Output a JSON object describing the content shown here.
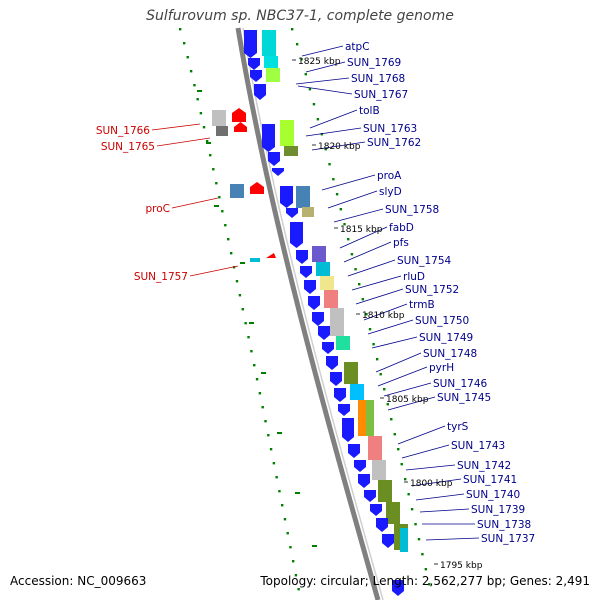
{
  "title": "Sulfurovum sp. NBC37-1, complete genome",
  "footer": {
    "accession": "Accession: NC_009663",
    "topology": "Topology: circular; Length: 2,562,277 bp; Genes: 2,491"
  },
  "colors": {
    "forward_gene": "#1a1aff",
    "reverse_gene": "#ff0000",
    "backbone": "#808080",
    "gc_dots": "#008000",
    "right_label": "#00008b",
    "left_label": "#cc0000"
  },
  "kbp_labels": [
    "1825 kbp",
    "1820 kbp",
    "1815 kbp",
    "1810 kbp",
    "1805 kbp",
    "1800 kbp",
    "1795 kbp"
  ],
  "right_genes": [
    "atpC",
    "SUN_1769",
    "SUN_1768",
    "SUN_1767",
    "tolB",
    "SUN_1763",
    "SUN_1762",
    "proA",
    "slyD",
    "SUN_1758",
    "fabD",
    "pfs",
    "SUN_1754",
    "rluD",
    "SUN_1752",
    "trmB",
    "SUN_1750",
    "SUN_1749",
    "SUN_1748",
    "pyrH",
    "SUN_1746",
    "SUN_1745",
    "tyrS",
    "SUN_1743",
    "SUN_1742",
    "SUN_1741",
    "SUN_1740",
    "SUN_1739",
    "SUN_1738",
    "SUN_1737"
  ],
  "left_genes": [
    "SUN_1766",
    "SUN_1765",
    "proC",
    "SUN_1757"
  ]
}
